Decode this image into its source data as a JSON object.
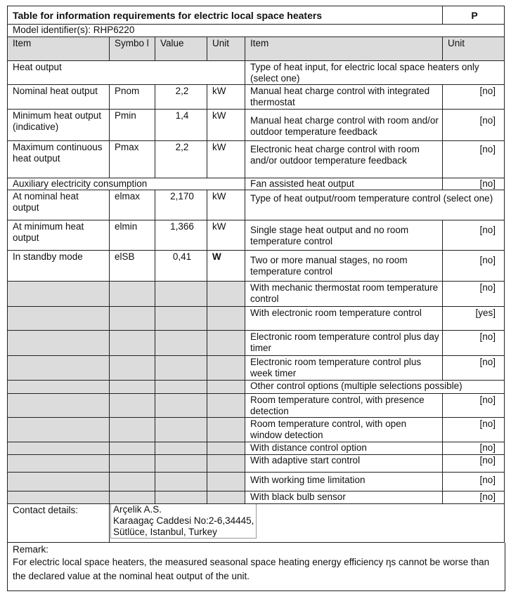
{
  "title": "Table for information requirements for electric local space heaters",
  "title_right": "P",
  "model": "Model identifier(s): RHP6220",
  "headers": {
    "item": "Item",
    "symbol": "Symbo l",
    "value": "Value",
    "unit": "Unit",
    "item2": "Item",
    "unit2": "Unit"
  },
  "left": {
    "heat_output": "Heat output",
    "rows": [
      {
        "item": "Nominal heat output",
        "symbol": "Pnom",
        "value": "2,2",
        "unit": "kW"
      },
      {
        "item": "Minimum heat output (indicative)",
        "symbol": "Pmin",
        "value": "1,4",
        "unit": "kW"
      },
      {
        "item": "Maximum continuous heat output",
        "symbol": "Pmax",
        "value": "2,2",
        "unit": "kW"
      }
    ],
    "aux": "Auxiliary electricity consumption",
    "aux_rows": [
      {
        "item": "At nominal heat output",
        "symbol": "elmax",
        "value": "2,170",
        "unit": "kW"
      },
      {
        "item": "At minimum heat output",
        "symbol": "elmin",
        "value": "1,366",
        "unit": "kW"
      },
      {
        "item": "In standby mode",
        "symbol": "elSB",
        "value": "0,41",
        "unit": "W"
      }
    ]
  },
  "right": {
    "heat_input_header": "Type of heat input, for electric local space heaters only (select one)",
    "heat_input": [
      {
        "item": "Manual heat charge control with integrated thermostat",
        "unit": "[no]"
      },
      {
        "item": "Manual heat charge control with room and/or outdoor temperature feedback",
        "unit": "[no]"
      },
      {
        "item": "Electronic heat charge control with room and/or outdoor temperature feedback",
        "unit": "[no]"
      },
      {
        "item": "Fan assisted heat output",
        "unit": "[no]"
      }
    ],
    "output_header": "Type of heat output/room temperature control (select one)",
    "output": [
      {
        "item": "Single stage heat output and no room temperature control",
        "unit": "[no]"
      },
      {
        "item": "Two or more manual stages, no room temperature control",
        "unit": "[no]"
      },
      {
        "item": "With mechanic thermostat room temperature control",
        "unit": "[no]"
      },
      {
        "item": "With electronic room temperature control",
        "unit": "[yes]"
      },
      {
        "item": "Electronic room temperature control plus day timer",
        "unit": "[no]"
      },
      {
        "item": "Electronic room temperature control plus week timer",
        "unit": "[no]"
      }
    ],
    "other_header": "Other control options (multiple selections possible)",
    "other": [
      {
        "item": "Room temperature control, with presence detection",
        "unit": "[no]"
      },
      {
        "item": "Room temperature control, with open window detection",
        "unit": "[no]"
      },
      {
        "item": "With distance control option",
        "unit": "[no]"
      },
      {
        "item": "With adaptive start control",
        "unit": "[no]"
      },
      {
        "item": "With working time limitation",
        "unit": "[no]"
      },
      {
        "item": "With black bulb sensor",
        "unit": "[no]"
      }
    ]
  },
  "contact": {
    "label": "Contact details:",
    "line1": "Arçelik A.S.",
    "line2": "Karaagaç Caddesi No:2-6,34445,",
    "line3": "Sütlüce, Istanbul, Turkey"
  },
  "remark": {
    "label": "Remark:",
    "text": "For electric local space heaters, the measured seasonal space heating energy efficiency ηs cannot be worse than the declared value at the nominal heat output of the unit."
  }
}
